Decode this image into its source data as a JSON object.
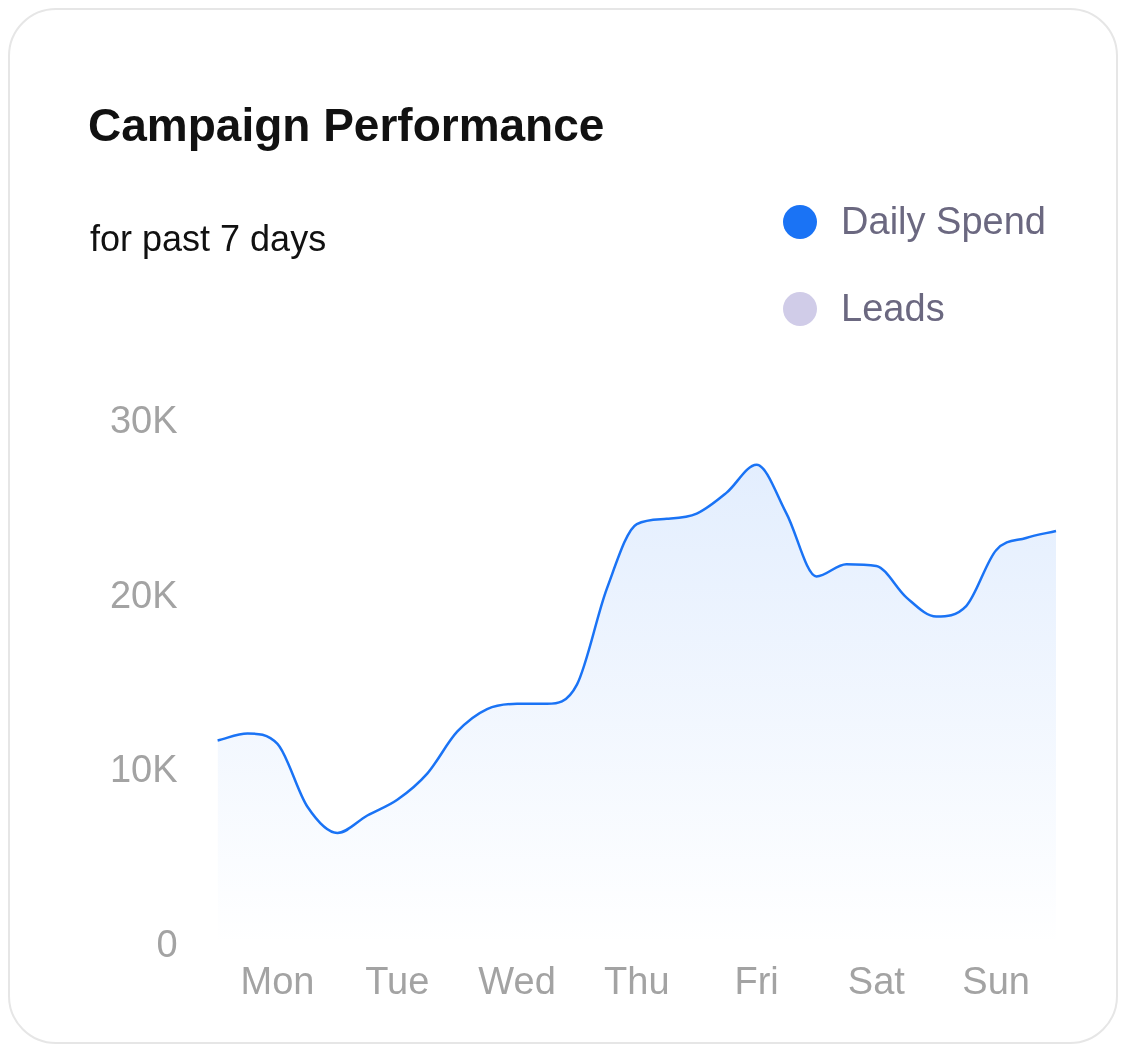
{
  "chart_data": {
    "type": "line",
    "title": "Campaign Performance",
    "subtitle": "for past 7 days",
    "categories": [
      null,
      null,
      "Mon",
      null,
      null,
      null,
      "Tue",
      null,
      null,
      null,
      "Wed",
      null,
      null,
      null,
      "Thu",
      null,
      null,
      null,
      "Fri",
      null,
      null,
      null,
      "Sat",
      null,
      null,
      null,
      "Sun",
      null,
      null
    ],
    "ylim": [
      0,
      30000
    ],
    "yticks": [
      {
        "value": 0,
        "label": "0"
      },
      {
        "value": 10000,
        "label": "10K"
      },
      {
        "value": 20000,
        "label": "20K"
      },
      {
        "value": 30000,
        "label": "30K"
      }
    ],
    "series": [
      {
        "name": "Daily Spend",
        "type": "area",
        "color": "#1a73f5",
        "values": [
          11800,
          12200,
          11600,
          8000,
          6500,
          7500,
          8400,
          9900,
          12300,
          13600,
          13900,
          13900,
          15000,
          20500,
          24200,
          24500,
          24800,
          26000,
          27600,
          24800,
          21200,
          21900,
          21800,
          20000,
          18900,
          19500,
          22700,
          23400,
          23800
        ]
      },
      {
        "name": "Leads",
        "type": "line",
        "color": "#d0cce8",
        "values": [
          null,
          null,
          null,
          null,
          null,
          null,
          null,
          null,
          null,
          null,
          null,
          null,
          null,
          null,
          null,
          null,
          null,
          null,
          null,
          null,
          null,
          null,
          null,
          null,
          null,
          null,
          null,
          null,
          null
        ]
      }
    ],
    "grid": false,
    "legend": "top right",
    "marker": "none"
  }
}
